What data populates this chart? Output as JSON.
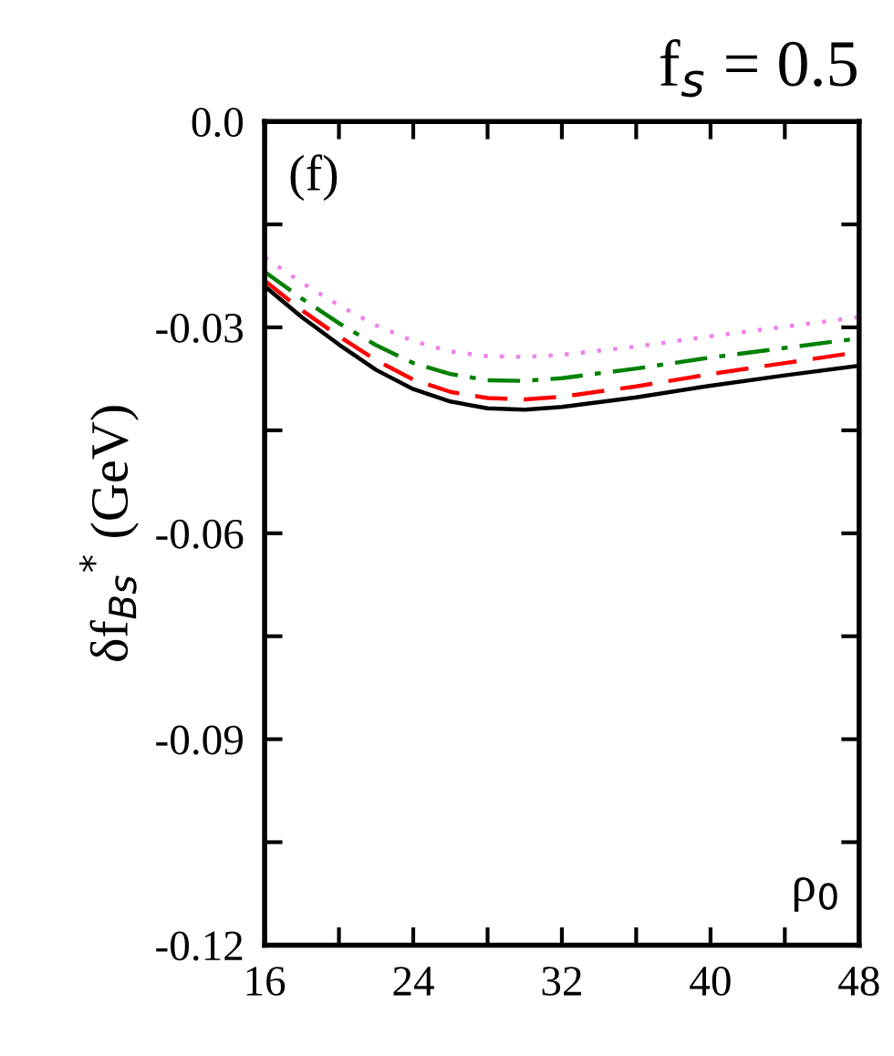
{
  "chart_data": {
    "type": "line",
    "title": "f$_{s}$ = 0.5",
    "xlabel": "ρ$_{0}$",
    "ylabel": "δf$_{Bs}$$^{*}$ (GeV)",
    "annotations": [
      "(f)"
    ],
    "x": [
      16,
      18,
      20,
      22,
      24,
      26,
      28,
      30,
      32,
      36,
      40,
      44,
      48
    ],
    "series": [
      {
        "color": "#000000",
        "line_style": "solid",
        "values": [
          -0.024,
          -0.0285,
          -0.0325,
          -0.0362,
          -0.039,
          -0.0408,
          -0.0418,
          -0.042,
          -0.0416,
          -0.0402,
          -0.0385,
          -0.037,
          -0.0356
        ]
      },
      {
        "color": "#ff0000",
        "line_style": "dashed",
        "values": [
          -0.0232,
          -0.0275,
          -0.0313,
          -0.0348,
          -0.0376,
          -0.0394,
          -0.0403,
          -0.0405,
          -0.0401,
          -0.0386,
          -0.0368,
          -0.0352,
          -0.0336
        ]
      },
      {
        "color": "#008000",
        "line_style": "dashdot",
        "values": [
          -0.0219,
          -0.0258,
          -0.0294,
          -0.0326,
          -0.0352,
          -0.0368,
          -0.0377,
          -0.0378,
          -0.0374,
          -0.036,
          -0.0344,
          -0.033,
          -0.0316
        ]
      },
      {
        "color": "#ee82ee",
        "line_style": "dotted",
        "values": [
          -0.0198,
          -0.0235,
          -0.0268,
          -0.0297,
          -0.032,
          -0.0335,
          -0.0342,
          -0.0343,
          -0.034,
          -0.0328,
          -0.0313,
          -0.0299,
          -0.0285
        ]
      }
    ],
    "xlim": [
      16,
      48
    ],
    "ylim": [
      -0.12,
      0.0
    ],
    "xticks": [
      16,
      {
        "value": 20,
        "label": null
      },
      24,
      {
        "value": 28,
        "label": null
      },
      32,
      {
        "value": 36,
        "label": null
      },
      40,
      {
        "value": 44,
        "label": null
      },
      48
    ],
    "yticks": [
      {
        "value": -0.12,
        "label": "-0.12"
      },
      {
        "value": -0.105,
        "label": null
      },
      {
        "value": -0.09,
        "label": "-0.09"
      },
      {
        "value": -0.075,
        "label": null
      },
      {
        "value": -0.06,
        "label": "-0.06"
      },
      {
        "value": -0.045,
        "label": null
      },
      {
        "value": -0.03,
        "label": "-0.03"
      },
      {
        "value": -0.015,
        "label": null
      },
      {
        "value": 0.0,
        "label": "0.0"
      }
    ],
    "grid": false,
    "legend": false
  }
}
